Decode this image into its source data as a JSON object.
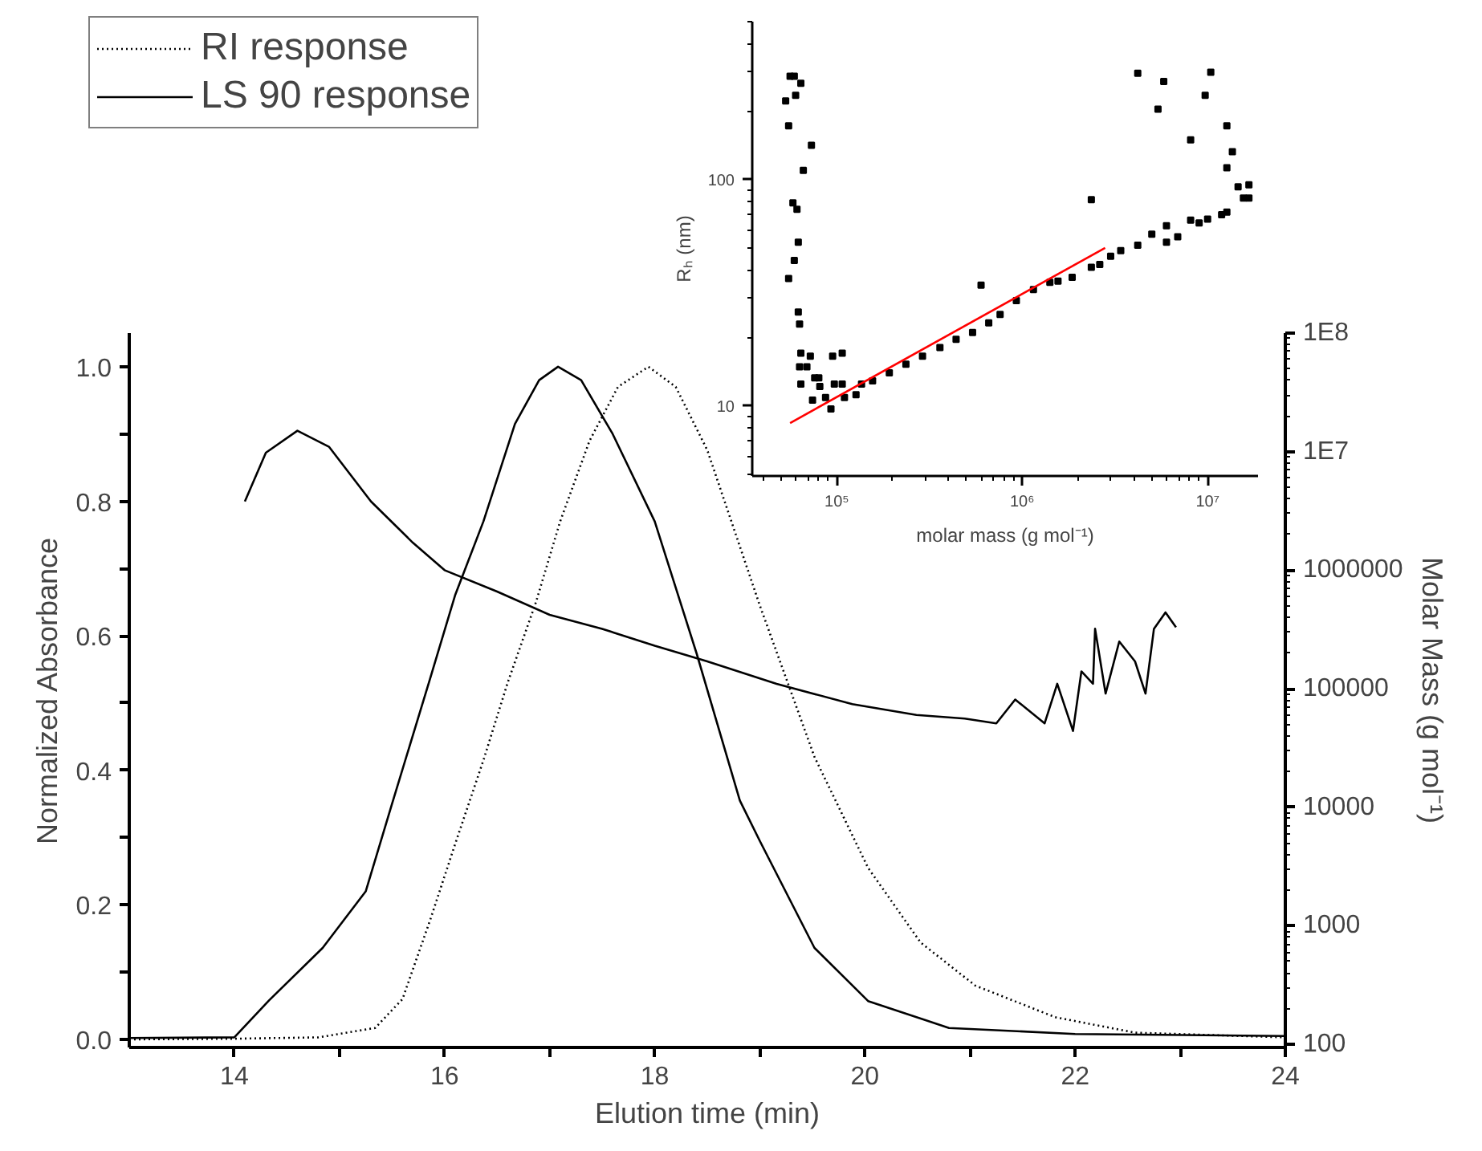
{
  "chart_data": [
    {
      "type": "line",
      "xlabel": "Elution time (min)",
      "ylabel": "Normalized Absorbance",
      "y2label": "Molar Mass (g mol⁻¹)",
      "xlim": [
        13,
        24
      ],
      "ylim": [
        -0.012,
        1.05
      ],
      "y2lim": [
        94,
        100000000
      ],
      "log": "y2",
      "legend": "top left",
      "xticks": [
        14,
        {
          "value": 15,
          "label": null
        },
        16,
        {
          "value": 17,
          "label": null
        },
        18,
        {
          "value": 19,
          "label": null
        },
        20,
        {
          "value": 21,
          "label": null
        },
        22,
        {
          "value": 23,
          "label": null
        },
        24
      ],
      "yticks": [
        {
          "value": 0,
          "label": "0.0"
        },
        {
          "value": 0.1,
          "label": null
        },
        {
          "value": 0.2,
          "label": "0.2"
        },
        {
          "value": 0.3,
          "label": null
        },
        {
          "value": 0.4,
          "label": "0.4"
        },
        {
          "value": 0.5,
          "label": null
        },
        {
          "value": 0.6,
          "label": "0.6"
        },
        {
          "value": 0.7,
          "label": null
        },
        {
          "value": 0.8,
          "label": "0.8"
        },
        {
          "value": 0.9,
          "label": null
        },
        {
          "value": 1.0,
          "label": "1.0"
        }
      ],
      "y2ticks": [
        100,
        1000,
        10000,
        100000,
        1000000,
        {
          "value": 10000000,
          "label": "1E7"
        },
        {
          "value": 100000000,
          "label": "1E8"
        }
      ],
      "series": [
        {
          "name": "RI response",
          "color": "#000000",
          "line_style": "dotted",
          "x": [
            13,
            14,
            14.8,
            15.34,
            15.6,
            15.86,
            16.1,
            16.37,
            16.6,
            16.87,
            17.1,
            17.38,
            17.65,
            17.94,
            18.2,
            18.5,
            19.0,
            19.52,
            20.03,
            20.53,
            21.05,
            21.81,
            22.57,
            24
          ],
          "values": [
            0,
            0.001,
            0.003,
            0.017,
            0.06,
            0.176,
            0.29,
            0.415,
            0.53,
            0.65,
            0.77,
            0.89,
            0.97,
            1.0,
            0.97,
            0.876,
            0.645,
            0.42,
            0.255,
            0.144,
            0.08,
            0.033,
            0.01,
            0.003
          ]
        },
        {
          "name": "LS 90 response",
          "color": "#000000",
          "line_style": "solid",
          "x": [
            13,
            14,
            14.33,
            14.84,
            15.25,
            15.5,
            15.86,
            16.1,
            16.37,
            16.67,
            16.9,
            17.08,
            17.3,
            17.6,
            18.0,
            18.4,
            18.81,
            19.0,
            19.52,
            20.03,
            20.8,
            22,
            24
          ],
          "values": [
            0.002,
            0.003,
            0.058,
            0.136,
            0.22,
            0.35,
            0.535,
            0.66,
            0.77,
            0.915,
            0.98,
            1.0,
            0.98,
            0.9,
            0.77,
            0.573,
            0.355,
            0.295,
            0.136,
            0.057,
            0.017,
            0.008,
            0.005
          ]
        },
        {
          "color": "#000000",
          "line_style": "solid",
          "axis": "y2",
          "x": [
            14.1,
            14.3,
            14.6,
            14.9,
            15.3,
            15.7,
            16.0,
            16.5,
            17,
            17.5,
            18,
            18.5,
            19.16,
            19.88,
            20.49,
            20.95,
            21.25,
            21.43,
            21.71,
            21.83,
            21.98,
            22.06,
            22.17,
            22.19,
            22.29,
            22.42,
            22.57,
            22.67,
            22.75,
            22.86,
            22.96
          ],
          "values": [
            3800000,
            9800000,
            15000000,
            11000000,
            3800000,
            1700000,
            1000000,
            660000,
            420000,
            320000,
            230000,
            170000,
            110000,
            74000,
            60000,
            56000,
            51000,
            81000,
            51000,
            110000,
            44000,
            140000,
            110000,
            320000,
            91000,
            250000,
            170000,
            91000,
            320000,
            440000,
            330000
          ]
        }
      ]
    },
    {
      "type": "scatter",
      "xlabel": "molar mass (g mol⁻¹)",
      "ylabel": "Rₕ (nm)",
      "log": "xy",
      "xlim": [
        35000,
        18700000
      ],
      "ylim": [
        4.9,
        500
      ],
      "xticks": [
        {
          "value": 100000,
          "label": "10⁵"
        },
        {
          "value": 1000000,
          "label": "10⁶"
        },
        {
          "value": 10000000,
          "label": "10⁷"
        }
      ],
      "yticks": [
        10,
        100
      ],
      "series": [
        {
          "color": "#000000",
          "marker": "square",
          "x": [
            53000,
            56000,
            60000,
            59000,
            64000,
            55000,
            55000,
            58000,
            61000,
            59000,
            62000,
            62000,
            63000,
            64000,
            64000,
            66000,
            73000,
            63000,
            69000,
            72000,
            76000,
            74000,
            80000,
            81000,
            87000,
            93000,
            97000,
            107000,
            95000,
            107000,
            110000,
            127000,
            136000,
            156000,
            192000,
            236000,
            290000,
            360000,
            440000,
            540000,
            600000,
            660000,
            760000,
            930000,
            1150000,
            1410000,
            1560000,
            1860000,
            2360000,
            2360000,
            2620000,
            3000000,
            3400000,
            4200000,
            5000000,
            6000000,
            8100000,
            9000000,
            12700000,
            16700000,
            12700000,
            4200000,
            5400000,
            5800000,
            8100000,
            9700000,
            10400000,
            12700000,
            13600000,
            11900000,
            14600000,
            15600000,
            16700000,
            6000000,
            6900000,
            10000000
          ],
          "values": [
            223,
            287,
            236,
            287,
            267,
            173,
            36.6,
            79,
            74,
            44,
            53,
            26,
            23,
            17.1,
            12.5,
            110,
            142,
            14.9,
            14.9,
            16.6,
            13.3,
            10.6,
            13.3,
            12.2,
            10.9,
            9.7,
            12.5,
            12.5,
            16.6,
            17.1,
            10.9,
            11.2,
            12.5,
            12.9,
            14.0,
            15.3,
            16.6,
            18.1,
            19.7,
            21.1,
            34.2,
            23.3,
            25.4,
            29.2,
            32.7,
            35.2,
            35.6,
            37.0,
            41.0,
            81.7,
            42.2,
            45.9,
            48.6,
            51.4,
            57.5,
            62.6,
            66.3,
            64.4,
            72,
            83,
            113,
            296,
            205,
            272,
            150,
            236,
            299,
            173,
            133,
            70,
            93,
            83,
            95,
            53,
            56,
            67
          ]
        },
        {
          "type": "line",
          "color": "#ff0000",
          "x": [
            56000,
            2800000
          ],
          "values": [
            8.4,
            50
          ]
        }
      ]
    }
  ]
}
